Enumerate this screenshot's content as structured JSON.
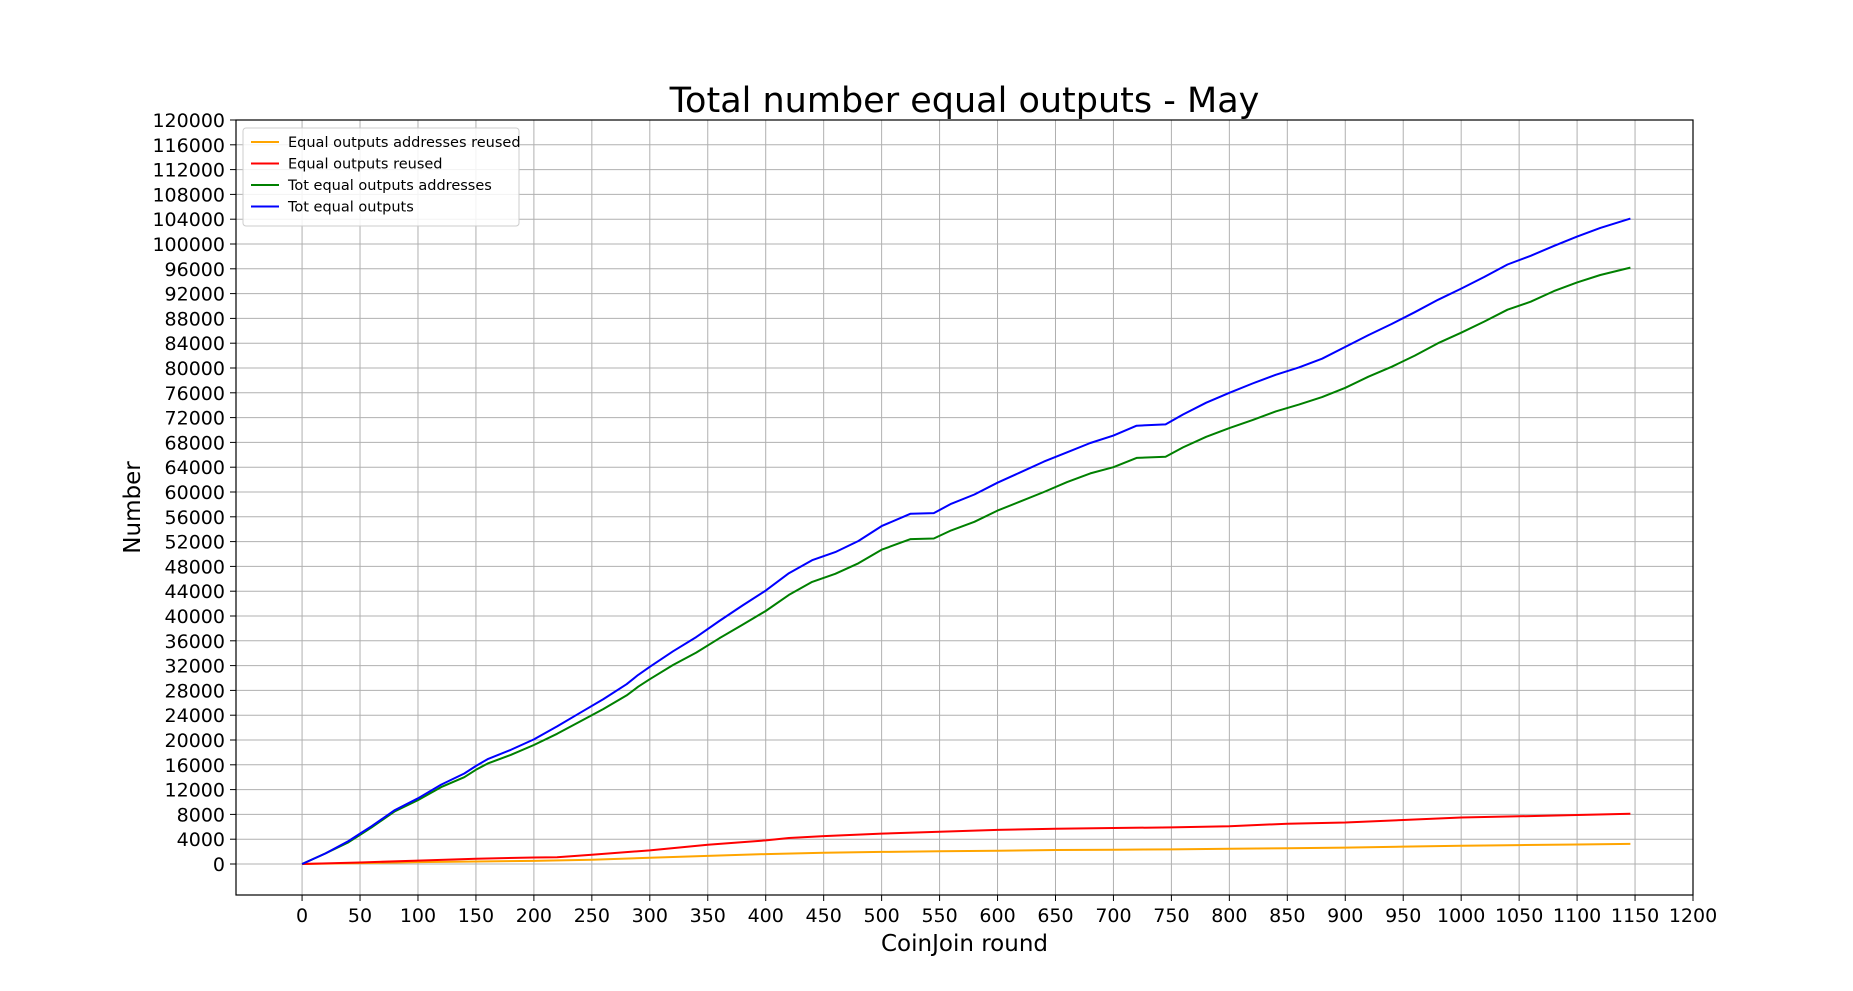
{
  "chart_data": {
    "type": "line",
    "title": "Total number equal outputs - May",
    "xlabel": "CoinJoin round",
    "ylabel": "Number",
    "xlim": [
      -57,
      1200
    ],
    "ylim": [
      -5000,
      120000
    ],
    "xticks": [
      0,
      50,
      100,
      150,
      200,
      250,
      300,
      350,
      400,
      450,
      500,
      550,
      600,
      650,
      700,
      750,
      800,
      850,
      900,
      950,
      1000,
      1050,
      1100,
      1150,
      1200
    ],
    "yticks": [
      0,
      4000,
      8000,
      12000,
      16000,
      20000,
      24000,
      28000,
      32000,
      36000,
      40000,
      44000,
      48000,
      52000,
      56000,
      60000,
      64000,
      68000,
      72000,
      76000,
      80000,
      84000,
      88000,
      92000,
      96000,
      100000,
      104000,
      108000,
      112000,
      116000,
      120000
    ],
    "grid": true,
    "legend_position": "top-left",
    "series": [
      {
        "name": "Equal outputs addresses reused",
        "color": "#ffa500",
        "x": [
          0,
          50,
          100,
          150,
          200,
          250,
          300,
          350,
          400,
          450,
          500,
          550,
          600,
          650,
          700,
          750,
          800,
          850,
          900,
          950,
          1000,
          1050,
          1100,
          1146
        ],
        "y": [
          0,
          150,
          300,
          400,
          500,
          700,
          1000,
          1300,
          1600,
          1800,
          1950,
          2050,
          2150,
          2250,
          2300,
          2350,
          2450,
          2550,
          2650,
          2800,
          2950,
          3050,
          3150,
          3250
        ]
      },
      {
        "name": "Equal outputs reused",
        "color": "#ff0000",
        "x": [
          0,
          50,
          100,
          150,
          200,
          220,
          250,
          300,
          350,
          400,
          420,
          450,
          500,
          550,
          600,
          650,
          700,
          750,
          800,
          850,
          900,
          950,
          1000,
          1050,
          1100,
          1146
        ],
        "y": [
          0,
          250,
          550,
          850,
          1050,
          1100,
          1500,
          2200,
          3100,
          3800,
          4200,
          4500,
          4900,
          5200,
          5500,
          5700,
          5800,
          5900,
          6100,
          6500,
          6700,
          7100,
          7500,
          7700,
          7900,
          8100
        ]
      },
      {
        "name": "Tot equal outputs addresses",
        "color": "#008000",
        "x": [
          0,
          20,
          40,
          50,
          60,
          80,
          100,
          120,
          140,
          150,
          160,
          180,
          200,
          220,
          240,
          260,
          280,
          290,
          300,
          320,
          340,
          360,
          380,
          400,
          420,
          440,
          460,
          480,
          500,
          525,
          545,
          560,
          580,
          600,
          620,
          640,
          660,
          680,
          700,
          720,
          745,
          760,
          780,
          800,
          820,
          840,
          860,
          880,
          900,
          920,
          940,
          960,
          980,
          1000,
          1020,
          1040,
          1060,
          1080,
          1100,
          1120,
          1146
        ],
        "y": [
          0,
          1700,
          3500,
          4700,
          5900,
          8500,
          10300,
          12400,
          14000,
          15200,
          16200,
          17600,
          19200,
          21000,
          23000,
          25000,
          27200,
          28600,
          29800,
          32100,
          34100,
          36400,
          38600,
          40800,
          43400,
          45500,
          46800,
          48500,
          50700,
          52400,
          52500,
          53800,
          55200,
          57000,
          58500,
          60000,
          61600,
          63000,
          64000,
          65500,
          65700,
          67200,
          68900,
          70300,
          71600,
          73000,
          74100,
          75300,
          76800,
          78600,
          80200,
          82000,
          84000,
          85700,
          87500,
          89400,
          90700,
          92400,
          93800,
          95000,
          96200
        ]
      },
      {
        "name": "Tot equal outputs",
        "color": "#0000ff",
        "x": [
          0,
          20,
          40,
          50,
          60,
          80,
          100,
          120,
          140,
          150,
          160,
          180,
          200,
          220,
          240,
          260,
          280,
          290,
          300,
          320,
          340,
          360,
          380,
          400,
          420,
          440,
          460,
          480,
          500,
          525,
          545,
          560,
          580,
          600,
          620,
          640,
          660,
          680,
          700,
          720,
          745,
          760,
          780,
          800,
          820,
          840,
          860,
          880,
          900,
          920,
          940,
          960,
          980,
          1000,
          1020,
          1040,
          1060,
          1080,
          1100,
          1120,
          1146
        ],
        "y": [
          0,
          1700,
          3700,
          4900,
          6100,
          8700,
          10600,
          12800,
          14600,
          15800,
          16900,
          18400,
          20100,
          22200,
          24400,
          26600,
          29000,
          30500,
          31800,
          34300,
          36600,
          39200,
          41700,
          44100,
          46900,
          49000,
          50300,
          52100,
          54500,
          56500,
          56600,
          58100,
          59600,
          61500,
          63200,
          64900,
          66400,
          67900,
          69100,
          70700,
          70900,
          72500,
          74400,
          76000,
          77500,
          78900,
          80100,
          81500,
          83400,
          85300,
          87100,
          89000,
          91000,
          92800,
          94700,
          96700,
          98100,
          99700,
          101200,
          102600,
          104100
        ]
      }
    ]
  }
}
